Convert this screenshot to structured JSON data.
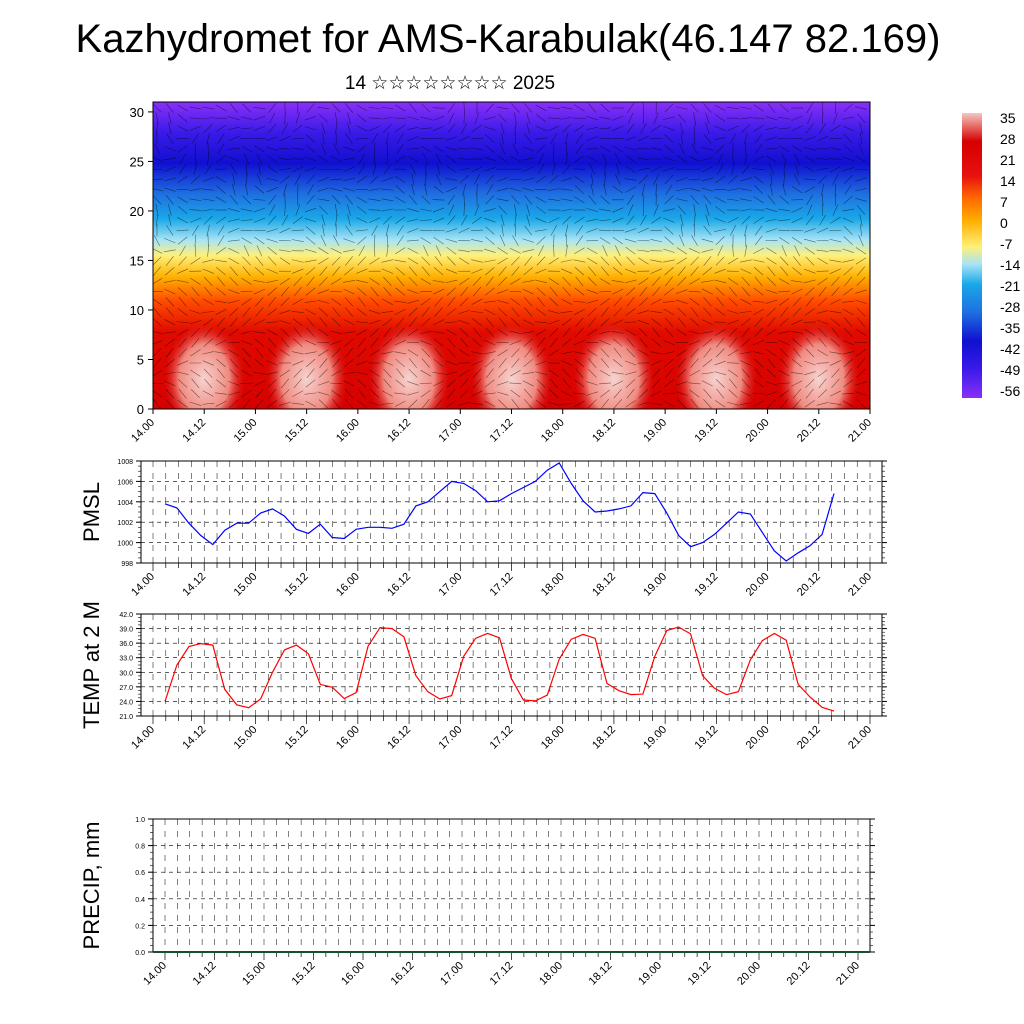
{
  "title": "Kazhydromet for AMS-Karabulak(46.147 82.169)",
  "subtitle": "14 ☆☆☆☆☆☆☆☆ 2025",
  "chart_data": [
    {
      "type": "heatmap",
      "description_kind": "vertical cross-section time-height",
      "x_ticks": [
        "14.00",
        "14.12",
        "15.00",
        "15.12",
        "16.00",
        "16.12",
        "17.00",
        "17.12",
        "18.00",
        "18.12",
        "19.00",
        "19.12",
        "20.00",
        "20.12",
        "21.00"
      ],
      "y_ticks": [
        "0",
        "5",
        "10",
        "15",
        "20",
        "25",
        "30"
      ],
      "ylim": [
        0,
        31
      ],
      "colorbar_labels": [
        "35",
        "28",
        "21",
        "14",
        "7",
        "0",
        "-7",
        "-14",
        "-21",
        "-28",
        "-35",
        "-42",
        "-49",
        "-56"
      ],
      "colorbar_range": [
        -63,
        42
      ],
      "colors": {
        "hot": "#f5c6c0",
        "red": "#d60000",
        "orange": "#ff8a00",
        "yellow": "#fff07a",
        "light_blue": "#a8e4f5",
        "cyan": "#1aa8e8",
        "blue": "#1010d0",
        "violet": "#8a30f8"
      }
    },
    {
      "type": "line",
      "ylabel": "PMSL",
      "ylim": [
        998,
        1008
      ],
      "y_ticks": [
        "998",
        "1000",
        "1002",
        "1004",
        "1006",
        "1008"
      ],
      "x_ticks": [
        "14.00",
        "14.12",
        "15.00",
        "15.12",
        "16.00",
        "16.12",
        "17.00",
        "17.12",
        "18.00",
        "18.12",
        "19.00",
        "19.12",
        "20.00",
        "20.12",
        "21.00"
      ],
      "line_color": "#0000ff",
      "series": [
        {
          "values": [
            1003.8,
            1003.4,
            1001.9,
            1000.7,
            999.8,
            1001.2,
            1001.9,
            1001.9,
            1002.9,
            1003.3,
            1002.6,
            1001.3,
            1000.9,
            1001.8,
            1000.5,
            1000.4,
            1001.3,
            1001.5,
            1001.5,
            1001.4,
            1001.8,
            1003.6,
            1004.0,
            1005.0,
            1006.0,
            1005.8,
            1005.1,
            1004.0,
            1004.1,
            1004.8,
            1005.4,
            1006.0,
            1007.1,
            1007.8,
            1005.8,
            1004.1,
            1003.0,
            1003.1,
            1003.3,
            1003.6,
            1004.9,
            1004.8,
            1002.9,
            1000.7,
            999.6,
            1000.0,
            1000.8,
            1001.9,
            1003.0,
            1002.8,
            1001.0,
            999.2,
            998.2,
            999.0,
            999.7,
            1000.8,
            1004.8
          ]
        }
      ]
    },
    {
      "type": "line",
      "ylabel": "TEMP at 2 M",
      "ylim": [
        21.0,
        42.0
      ],
      "y_ticks": [
        "21.0",
        "24.0",
        "27.0",
        "30.0",
        "33.0",
        "36.0",
        "39.0",
        "42.0"
      ],
      "x_ticks": [
        "14.00",
        "14.12",
        "15.00",
        "15.12",
        "16.00",
        "16.12",
        "17.00",
        "17.12",
        "18.00",
        "18.12",
        "19.00",
        "19.12",
        "20.00",
        "20.12",
        "21.00"
      ],
      "line_color": "#ff0000",
      "series": [
        {
          "values": [
            24.0,
            31.5,
            35.3,
            35.9,
            35.6,
            26.5,
            23.3,
            22.7,
            24.5,
            30.0,
            34.6,
            35.6,
            33.8,
            27.5,
            26.9,
            24.6,
            25.8,
            35.4,
            39.2,
            39.0,
            37.3,
            29.3,
            26.0,
            24.5,
            25.2,
            33.3,
            37.0,
            38.0,
            37.1,
            28.7,
            24.3,
            24.1,
            25.3,
            32.7,
            36.8,
            37.8,
            37.0,
            27.7,
            26.2,
            25.4,
            25.5,
            33.3,
            38.6,
            39.3,
            37.9,
            29.3,
            26.7,
            25.4,
            26.0,
            32.6,
            36.5,
            38.0,
            36.6,
            27.5,
            24.9,
            22.8,
            22.0
          ]
        }
      ]
    },
    {
      "type": "bar",
      "ylabel": "PRECIP, mm",
      "ylim": [
        0.0,
        1.0
      ],
      "y_ticks": [
        "0.0",
        "0.2",
        "0.4",
        "0.6",
        "0.8",
        "1.0"
      ],
      "x_ticks": [
        "14.00",
        "14.12",
        "15.00",
        "15.12",
        "16.00",
        "16.12",
        "17.00",
        "17.12",
        "18.00",
        "18.12",
        "19.00",
        "19.12",
        "20.00",
        "20.12",
        "21.00"
      ],
      "series": [
        {
          "values": [
            0,
            0,
            0,
            0,
            0,
            0,
            0,
            0,
            0,
            0,
            0,
            0,
            0,
            0,
            0,
            0,
            0,
            0,
            0,
            0,
            0,
            0,
            0,
            0,
            0,
            0,
            0,
            0,
            0,
            0,
            0,
            0,
            0,
            0,
            0,
            0,
            0,
            0,
            0,
            0,
            0,
            0,
            0,
            0,
            0,
            0,
            0,
            0,
            0,
            0,
            0,
            0,
            0,
            0,
            0,
            0
          ]
        }
      ]
    }
  ]
}
